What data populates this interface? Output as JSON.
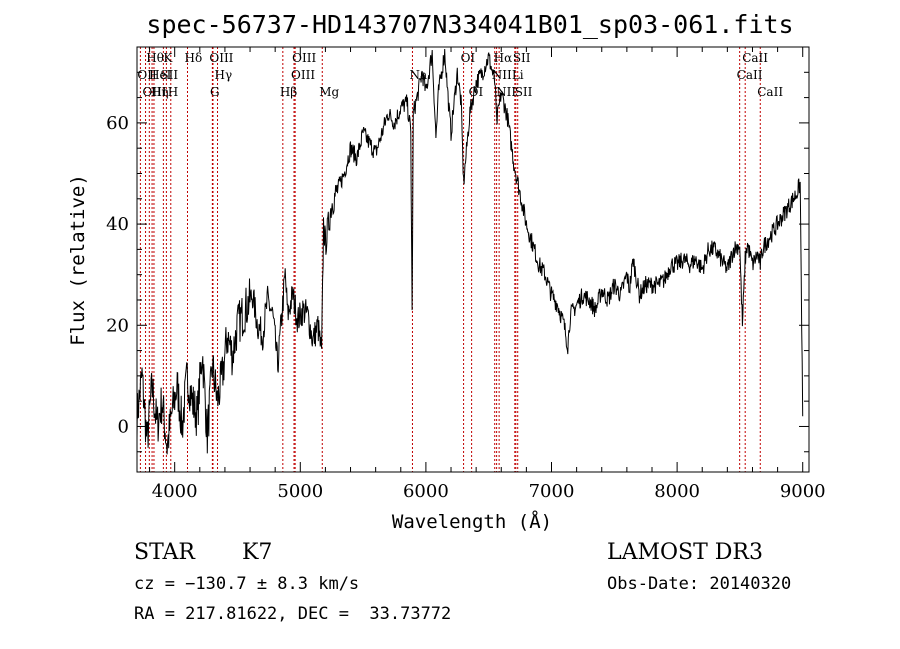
{
  "chart_data": {
    "type": "line",
    "title": "spec-56737-HD143707N334041B01_sp03-061.fits",
    "xlabel": "Wavelength (Å)",
    "ylabel": "Flux (relative)",
    "xlim": [
      3700,
      9050
    ],
    "ylim": [
      -9,
      75
    ],
    "xticks": [
      4000,
      5000,
      6000,
      7000,
      8000,
      9000
    ],
    "yticks": [
      0,
      20,
      40,
      60
    ],
    "grid": false,
    "series": [
      {
        "color": "#000000",
        "x": [
          3700,
          3740,
          3780,
          3820,
          3860,
          3900,
          3940,
          3980,
          4020,
          4060,
          4100,
          4140,
          4180,
          4220,
          4260,
          4300,
          4340,
          4380,
          4420,
          4460,
          4500,
          4540,
          4580,
          4620,
          4660,
          4700,
          4740,
          4780,
          4820,
          4860,
          4880,
          4900,
          4940,
          4980,
          5020,
          5060,
          5100,
          5140,
          5170,
          5185,
          5200,
          5250,
          5300,
          5350,
          5400,
          5450,
          5500,
          5550,
          5600,
          5650,
          5700,
          5750,
          5800,
          5850,
          5880,
          5890,
          5900,
          5930,
          5970,
          6000,
          6050,
          6080,
          6100,
          6150,
          6180,
          6200,
          6250,
          6280,
          6300,
          6350,
          6400,
          6450,
          6500,
          6550,
          6563,
          6600,
          6650,
          6700,
          6750,
          6800,
          6850,
          6900,
          6950,
          7000,
          7050,
          7100,
          7130,
          7150,
          7200,
          7250,
          7300,
          7350,
          7400,
          7450,
          7500,
          7550,
          7600,
          7620,
          7650,
          7700,
          7750,
          7800,
          7850,
          7900,
          7950,
          8000,
          8050,
          8100,
          8150,
          8200,
          8250,
          8300,
          8350,
          8400,
          8450,
          8498,
          8520,
          8542,
          8560,
          8600,
          8640,
          8662,
          8680,
          8700,
          8750,
          8800,
          8850,
          8900,
          8950,
          8980,
          9000
        ],
        "y": [
          2,
          10,
          -3,
          8,
          0,
          5,
          -4,
          3,
          8,
          0,
          10,
          5,
          2,
          15,
          -2,
          12,
          5,
          10,
          18,
          14,
          20,
          22,
          24,
          26,
          20,
          18,
          25,
          22,
          12,
          24,
          30,
          22,
          26,
          21,
          23,
          22,
          17,
          20,
          14,
          40,
          36,
          44,
          47,
          50,
          55,
          53,
          58,
          56,
          54,
          58,
          62,
          60,
          63,
          64,
          58,
          22,
          62,
          65,
          70,
          66,
          74,
          57,
          66,
          74,
          64,
          58,
          70,
          64,
          48,
          62,
          68,
          70,
          73,
          68,
          60,
          66,
          61,
          52,
          46,
          40,
          36,
          32,
          30,
          26,
          24,
          20,
          16,
          22,
          24,
          26,
          25,
          23,
          27,
          25,
          28,
          26,
          30,
          27,
          33,
          26,
          28,
          28,
          28,
          29,
          32,
          32,
          33,
          32,
          33,
          31,
          35,
          35,
          33,
          31,
          35,
          36,
          20,
          33,
          36,
          32,
          34,
          32,
          35,
          36,
          38,
          40,
          42,
          44,
          46,
          48,
          2
        ]
      }
    ],
    "annotations": [
      {
        "label": "Hθ",
        "x": 3798,
        "row": 1
      },
      {
        "label": "OII",
        "x": 3727,
        "row": 2
      },
      {
        "label": "OIII",
        "x": 3768,
        "row": 3
      },
      {
        "label": "HeI",
        "x": 3820,
        "row": 2
      },
      {
        "label": "Hη",
        "x": 3835,
        "row": 3
      },
      {
        "label": "K",
        "x": 3934,
        "row": 1
      },
      {
        "label": "SII",
        "x": 3910,
        "row": 2
      },
      {
        "label": "H",
        "x": 3969,
        "row": 3
      },
      {
        "label": "Hδ",
        "x": 4102,
        "row": 1
      },
      {
        "label": "OIII",
        "x": 4300,
        "row": 1
      },
      {
        "label": "Hγ",
        "x": 4341,
        "row": 2
      },
      {
        "label": "G",
        "x": 4305,
        "row": 3
      },
      {
        "label": "OIII",
        "x": 4959,
        "row": 1
      },
      {
        "label": "OIII",
        "x": 4950,
        "row": 2
      },
      {
        "label": "Hβ",
        "x": 4861,
        "row": 3
      },
      {
        "label": "Mg",
        "x": 5175,
        "row": 3
      },
      {
        "label": "Na",
        "x": 5893,
        "row": 2
      },
      {
        "label": "OI",
        "x": 6300,
        "row": 1
      },
      {
        "label": "OI",
        "x": 6364,
        "row": 3
      },
      {
        "label": "Hα",
        "x": 6563,
        "row": 1
      },
      {
        "label": "SII",
        "x": 6716,
        "row": 1
      },
      {
        "label": "NII",
        "x": 6548,
        "row": 2
      },
      {
        "label": "Li",
        "x": 6708,
        "row": 2
      },
      {
        "label": "NII",
        "x": 6583,
        "row": 3
      },
      {
        "label": "SII",
        "x": 6731,
        "row": 3
      },
      {
        "label": "CaII",
        "x": 8542,
        "row": 1
      },
      {
        "label": "CaII",
        "x": 8498,
        "row": 2
      },
      {
        "label": "CaII",
        "x": 8662,
        "row": 3
      }
    ]
  },
  "info": {
    "class": "STAR",
    "subclass": "K7",
    "survey": "LAMOST DR3",
    "cz": "cz = −130.7 ± 8.3 km/s",
    "obs_date": "Obs-Date: 20140320",
    "coords": "RA = 217.81622, DEC =  33.73772"
  }
}
